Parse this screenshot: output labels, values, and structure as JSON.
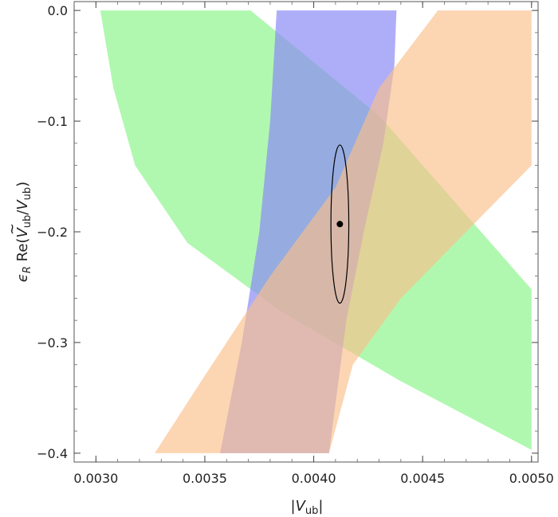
{
  "chart_data": {
    "type": "area",
    "title": "",
    "xlabel": "|V_ub|",
    "ylabel": "ε_R Re(Ṽ_ub/V_ub)",
    "xlabel_parts": {
      "pre": "|",
      "main": "V",
      "sub": "ub",
      "post": "|"
    },
    "ylabel_parts": {
      "eps": "ϵ",
      "eps_sub": "R",
      "re": " Re(",
      "tilde": "~",
      "v1": "V",
      "v1_sub": "ub",
      "slash": "/",
      "v2": "V",
      "v2_sub": "ub",
      "close": ")"
    },
    "xlim": [
      0.0029,
      0.00503
    ],
    "ylim": [
      -0.408,
      0.008
    ],
    "x_ticks": [
      {
        "value": 0.003,
        "label": "0.0030"
      },
      {
        "value": 0.0035,
        "label": "0.0035"
      },
      {
        "value": 0.004,
        "label": "0.0040"
      },
      {
        "value": 0.0045,
        "label": "0.0045"
      },
      {
        "value": 0.005,
        "label": "0.0050"
      }
    ],
    "y_ticks": [
      {
        "value": 0.0,
        "label": "0.0"
      },
      {
        "value": -0.1,
        "label": "−0.1"
      },
      {
        "value": -0.2,
        "label": "−0.2"
      },
      {
        "value": -0.3,
        "label": "−0.3"
      },
      {
        "value": -0.4,
        "label": "−0.4"
      }
    ],
    "grid": false,
    "regions": [
      {
        "name": "green-band",
        "color": "#8ff58f",
        "opacity": 0.7,
        "polygon": [
          [
            0.00302,
            0.0
          ],
          [
            0.00371,
            0.0
          ],
          [
            0.0043,
            -0.095
          ],
          [
            0.005,
            -0.252
          ],
          [
            0.005,
            -0.397
          ],
          [
            0.0044,
            -0.335
          ],
          [
            0.00385,
            -0.272
          ],
          [
            0.00342,
            -0.21
          ],
          [
            0.00318,
            -0.14
          ],
          [
            0.00308,
            -0.07
          ]
        ]
      },
      {
        "name": "blue-band",
        "color": "#8c8cf5",
        "opacity": 0.7,
        "polygon": [
          [
            0.00383,
            0.0
          ],
          [
            0.00438,
            0.0
          ],
          [
            0.00437,
            -0.05
          ],
          [
            0.00432,
            -0.12
          ],
          [
            0.00423,
            -0.2
          ],
          [
            0.00415,
            -0.28
          ],
          [
            0.00407,
            -0.4
          ],
          [
            0.00357,
            -0.4
          ],
          [
            0.00367,
            -0.3
          ],
          [
            0.00375,
            -0.2
          ],
          [
            0.0038,
            -0.1
          ]
        ]
      },
      {
        "name": "orange-band",
        "color": "#fbbf8a",
        "opacity": 0.65,
        "polygon": [
          [
            0.00457,
            0.0
          ],
          [
            0.005,
            0.0
          ],
          [
            0.005,
            -0.14
          ],
          [
            0.0047,
            -0.2
          ],
          [
            0.0044,
            -0.26
          ],
          [
            0.00418,
            -0.32
          ],
          [
            0.00407,
            -0.4
          ],
          [
            0.00327,
            -0.4
          ],
          [
            0.0035,
            -0.33
          ],
          [
            0.0038,
            -0.24
          ],
          [
            0.0041,
            -0.16
          ],
          [
            0.0043,
            -0.07
          ]
        ]
      }
    ],
    "ellipse": {
      "center": [
        0.00412,
        -0.193
      ],
      "rx": 4.1e-05,
      "ry": 0.0715,
      "color": "#000000"
    },
    "best_fit_point": {
      "x": 0.00412,
      "y": -0.193,
      "color": "#000000"
    }
  }
}
